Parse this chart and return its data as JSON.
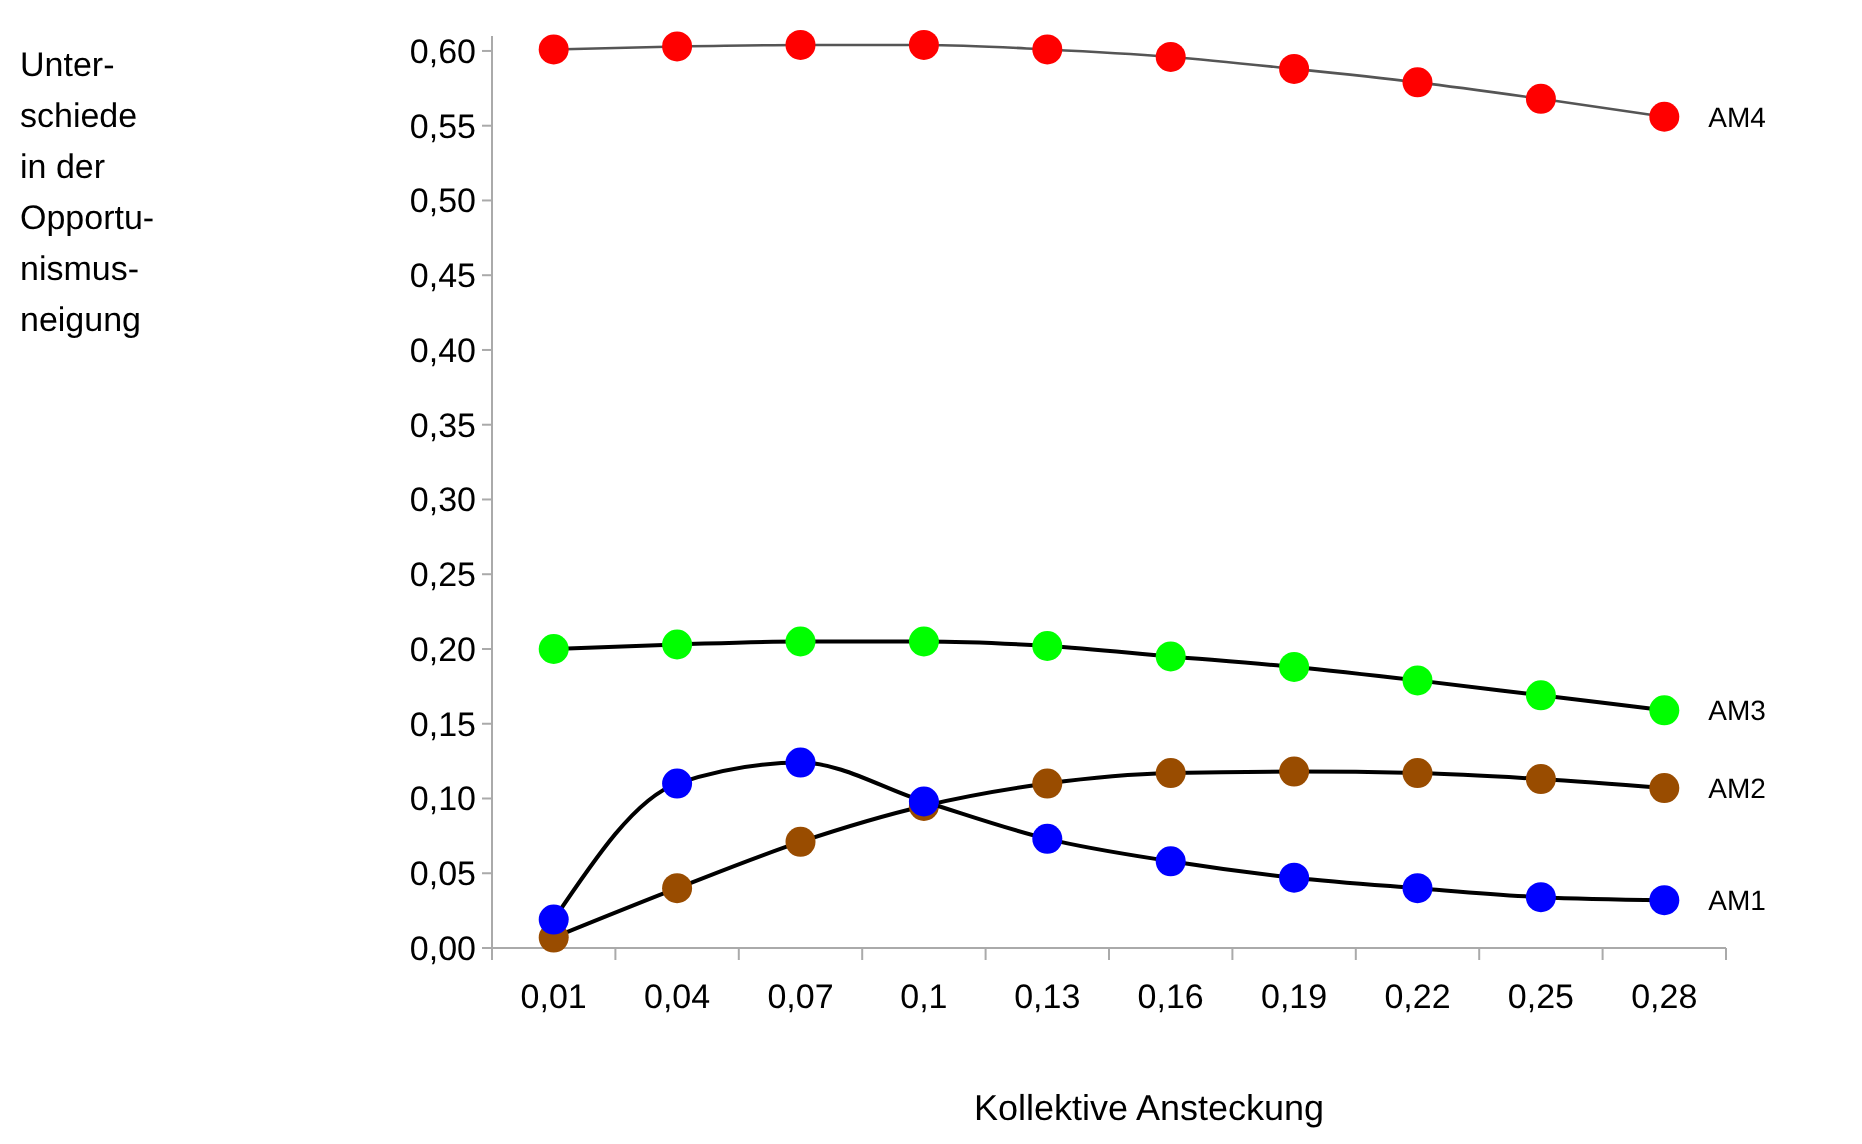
{
  "chart_data": {
    "type": "line",
    "xlabel": "Kollektive Ansteckung",
    "annotations": [
      "Unter-\nschiede\nin der\nOpportu-\nnismus-\nneigung"
    ],
    "categories": [
      "0,01",
      "0,04",
      "0,07",
      "0,1",
      "0,13",
      "0,16",
      "0,19",
      "0,22",
      "0,25",
      "0,28"
    ],
    "ylim": [
      0,
      0.61
    ],
    "yticks": [
      {
        "value": 0,
        "label": "0,00"
      },
      {
        "value": 0.05,
        "label": "0,05"
      },
      {
        "value": 0.1,
        "label": "0,10"
      },
      {
        "value": 0.15,
        "label": "0,15"
      },
      {
        "value": 0.2,
        "label": "0,20"
      },
      {
        "value": 0.25,
        "label": "0,25"
      },
      {
        "value": 0.3,
        "label": "0,30"
      },
      {
        "value": 0.35,
        "label": "0,35"
      },
      {
        "value": 0.4,
        "label": "0,40"
      },
      {
        "value": 0.45,
        "label": "0,45"
      },
      {
        "value": 0.5,
        "label": "0,50"
      },
      {
        "value": 0.55,
        "label": "0,55"
      },
      {
        "value": 0.6,
        "label": "0,60"
      }
    ],
    "grid": false,
    "marker": "circle",
    "line_style": "solid",
    "series": [
      {
        "name": "AM4",
        "color": "#ff0000",
        "values": [
          0.601,
          0.603,
          0.604,
          0.604,
          0.601,
          0.596,
          0.588,
          0.579,
          0.568,
          0.556
        ]
      },
      {
        "name": "AM3",
        "color": "#00ff00",
        "values": [
          0.2,
          0.203,
          0.205,
          0.205,
          0.202,
          0.195,
          0.188,
          0.179,
          0.169,
          0.159
        ]
      },
      {
        "name": "AM2",
        "color": "#994c00",
        "values": [
          0.007,
          0.04,
          0.071,
          0.095,
          0.11,
          0.117,
          0.118,
          0.117,
          0.113,
          0.107
        ]
      },
      {
        "name": "AM1",
        "color": "#0000ff",
        "values": [
          0.019,
          0.11,
          0.124,
          0.098,
          0.073,
          0.058,
          0.047,
          0.04,
          0.034,
          0.032
        ]
      }
    ]
  }
}
